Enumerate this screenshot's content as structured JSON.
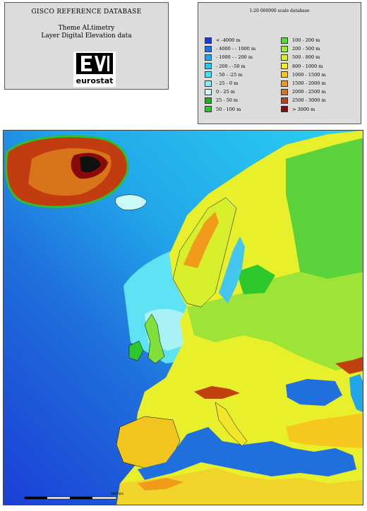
{
  "title_panel": {
    "title": "GISCO REFERENCE DATABASE",
    "theme": "Theme ALtimetry",
    "layer": "Layer Digital Elevation data",
    "logo_text": "eurostat"
  },
  "legend": {
    "scale": "1:20 000000 scale database",
    "left": [
      {
        "label": "< -4000 m",
        "color": "#1e3ad6"
      },
      {
        "label": "- 4000 - - 1000 m",
        "color": "#1f72df"
      },
      {
        "label": "- 1000 - - 200 m",
        "color": "#22a6ea"
      },
      {
        "label": "- 200 - -50 m",
        "color": "#27c8f0"
      },
      {
        "label": "- 50 - -25 m",
        "color": "#44e2f6"
      },
      {
        "label": "- 25 - 0 m",
        "color": "#7ff0f8"
      },
      {
        "label": "0 - 25 m",
        "color": "#c9faf8"
      },
      {
        "label": "25 - 50 m",
        "color": "#18b418"
      },
      {
        "label": "50 - 100 m",
        "color": "#2ec82c"
      }
    ],
    "right": [
      {
        "label": "100 - 200 m",
        "color": "#55dc3a"
      },
      {
        "label": "200 - 500 m",
        "color": "#9aea36"
      },
      {
        "label": "500 - 800 m",
        "color": "#d8f02c"
      },
      {
        "label": "800 - 1000 m",
        "color": "#f4ee2a"
      },
      {
        "label": "1000 - 1500 m",
        "color": "#f6c81e"
      },
      {
        "label": "1500 - 2000 m",
        "color": "#f09c1a"
      },
      {
        "label": "2000 - 2500 m",
        "color": "#d87414"
      },
      {
        "label": "2500 - 3000 m",
        "color": "#c0400e"
      },
      {
        "label": "> 3000 m",
        "color": "#8a0a0a"
      }
    ]
  },
  "map": {
    "scalebar_label": "1000 Km"
  }
}
